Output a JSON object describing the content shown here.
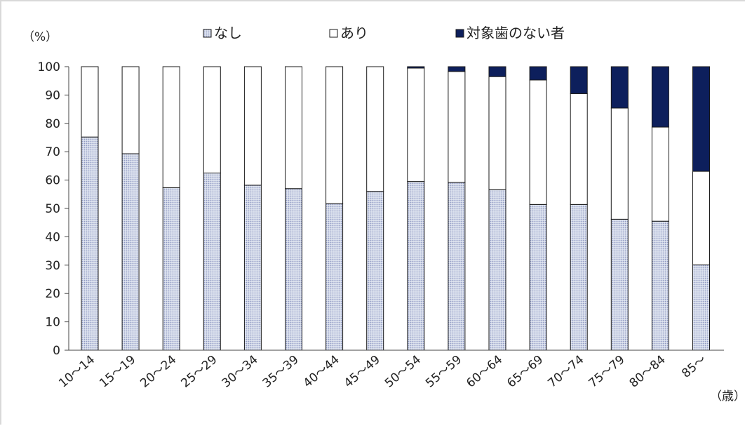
{
  "chart_data": {
    "type": "bar",
    "stacked": true,
    "categories": [
      "10～14",
      "15～19",
      "20～24",
      "25～29",
      "30～34",
      "35～39",
      "40～44",
      "45～49",
      "50～54",
      "55～59",
      "60～64",
      "65～69",
      "70～74",
      "75～79",
      "80～84",
      "85～"
    ],
    "series": [
      {
        "name": "なし",
        "color": "#c5cde3",
        "pattern": "dotted",
        "values": [
          75.2,
          69.3,
          57.3,
          62.5,
          58.2,
          57.0,
          51.7,
          56.0,
          59.5,
          59.2,
          56.6,
          51.4,
          51.4,
          46.2,
          45.5,
          30.1
        ]
      },
      {
        "name": "あり",
        "color": "#ffffff",
        "values": [
          24.8,
          30.7,
          42.7,
          37.5,
          41.8,
          43.0,
          48.3,
          44.0,
          40.0,
          39.1,
          39.9,
          43.9,
          39.1,
          39.2,
          33.2,
          33.0
        ]
      },
      {
        "name": "対象歯のない者",
        "color": "#0d1f5c",
        "values": [
          0,
          0,
          0,
          0,
          0,
          0,
          0,
          0,
          0.5,
          1.7,
          3.5,
          4.7,
          9.5,
          14.6,
          21.3,
          36.9
        ]
      }
    ],
    "ylabel": "（%）",
    "xlabel": "（歳）",
    "ylim": [
      0,
      100
    ],
    "yticks": [
      0,
      10,
      20,
      30,
      40,
      50,
      60,
      70,
      80,
      90,
      100
    ],
    "grid": false,
    "legend_position": "top"
  }
}
